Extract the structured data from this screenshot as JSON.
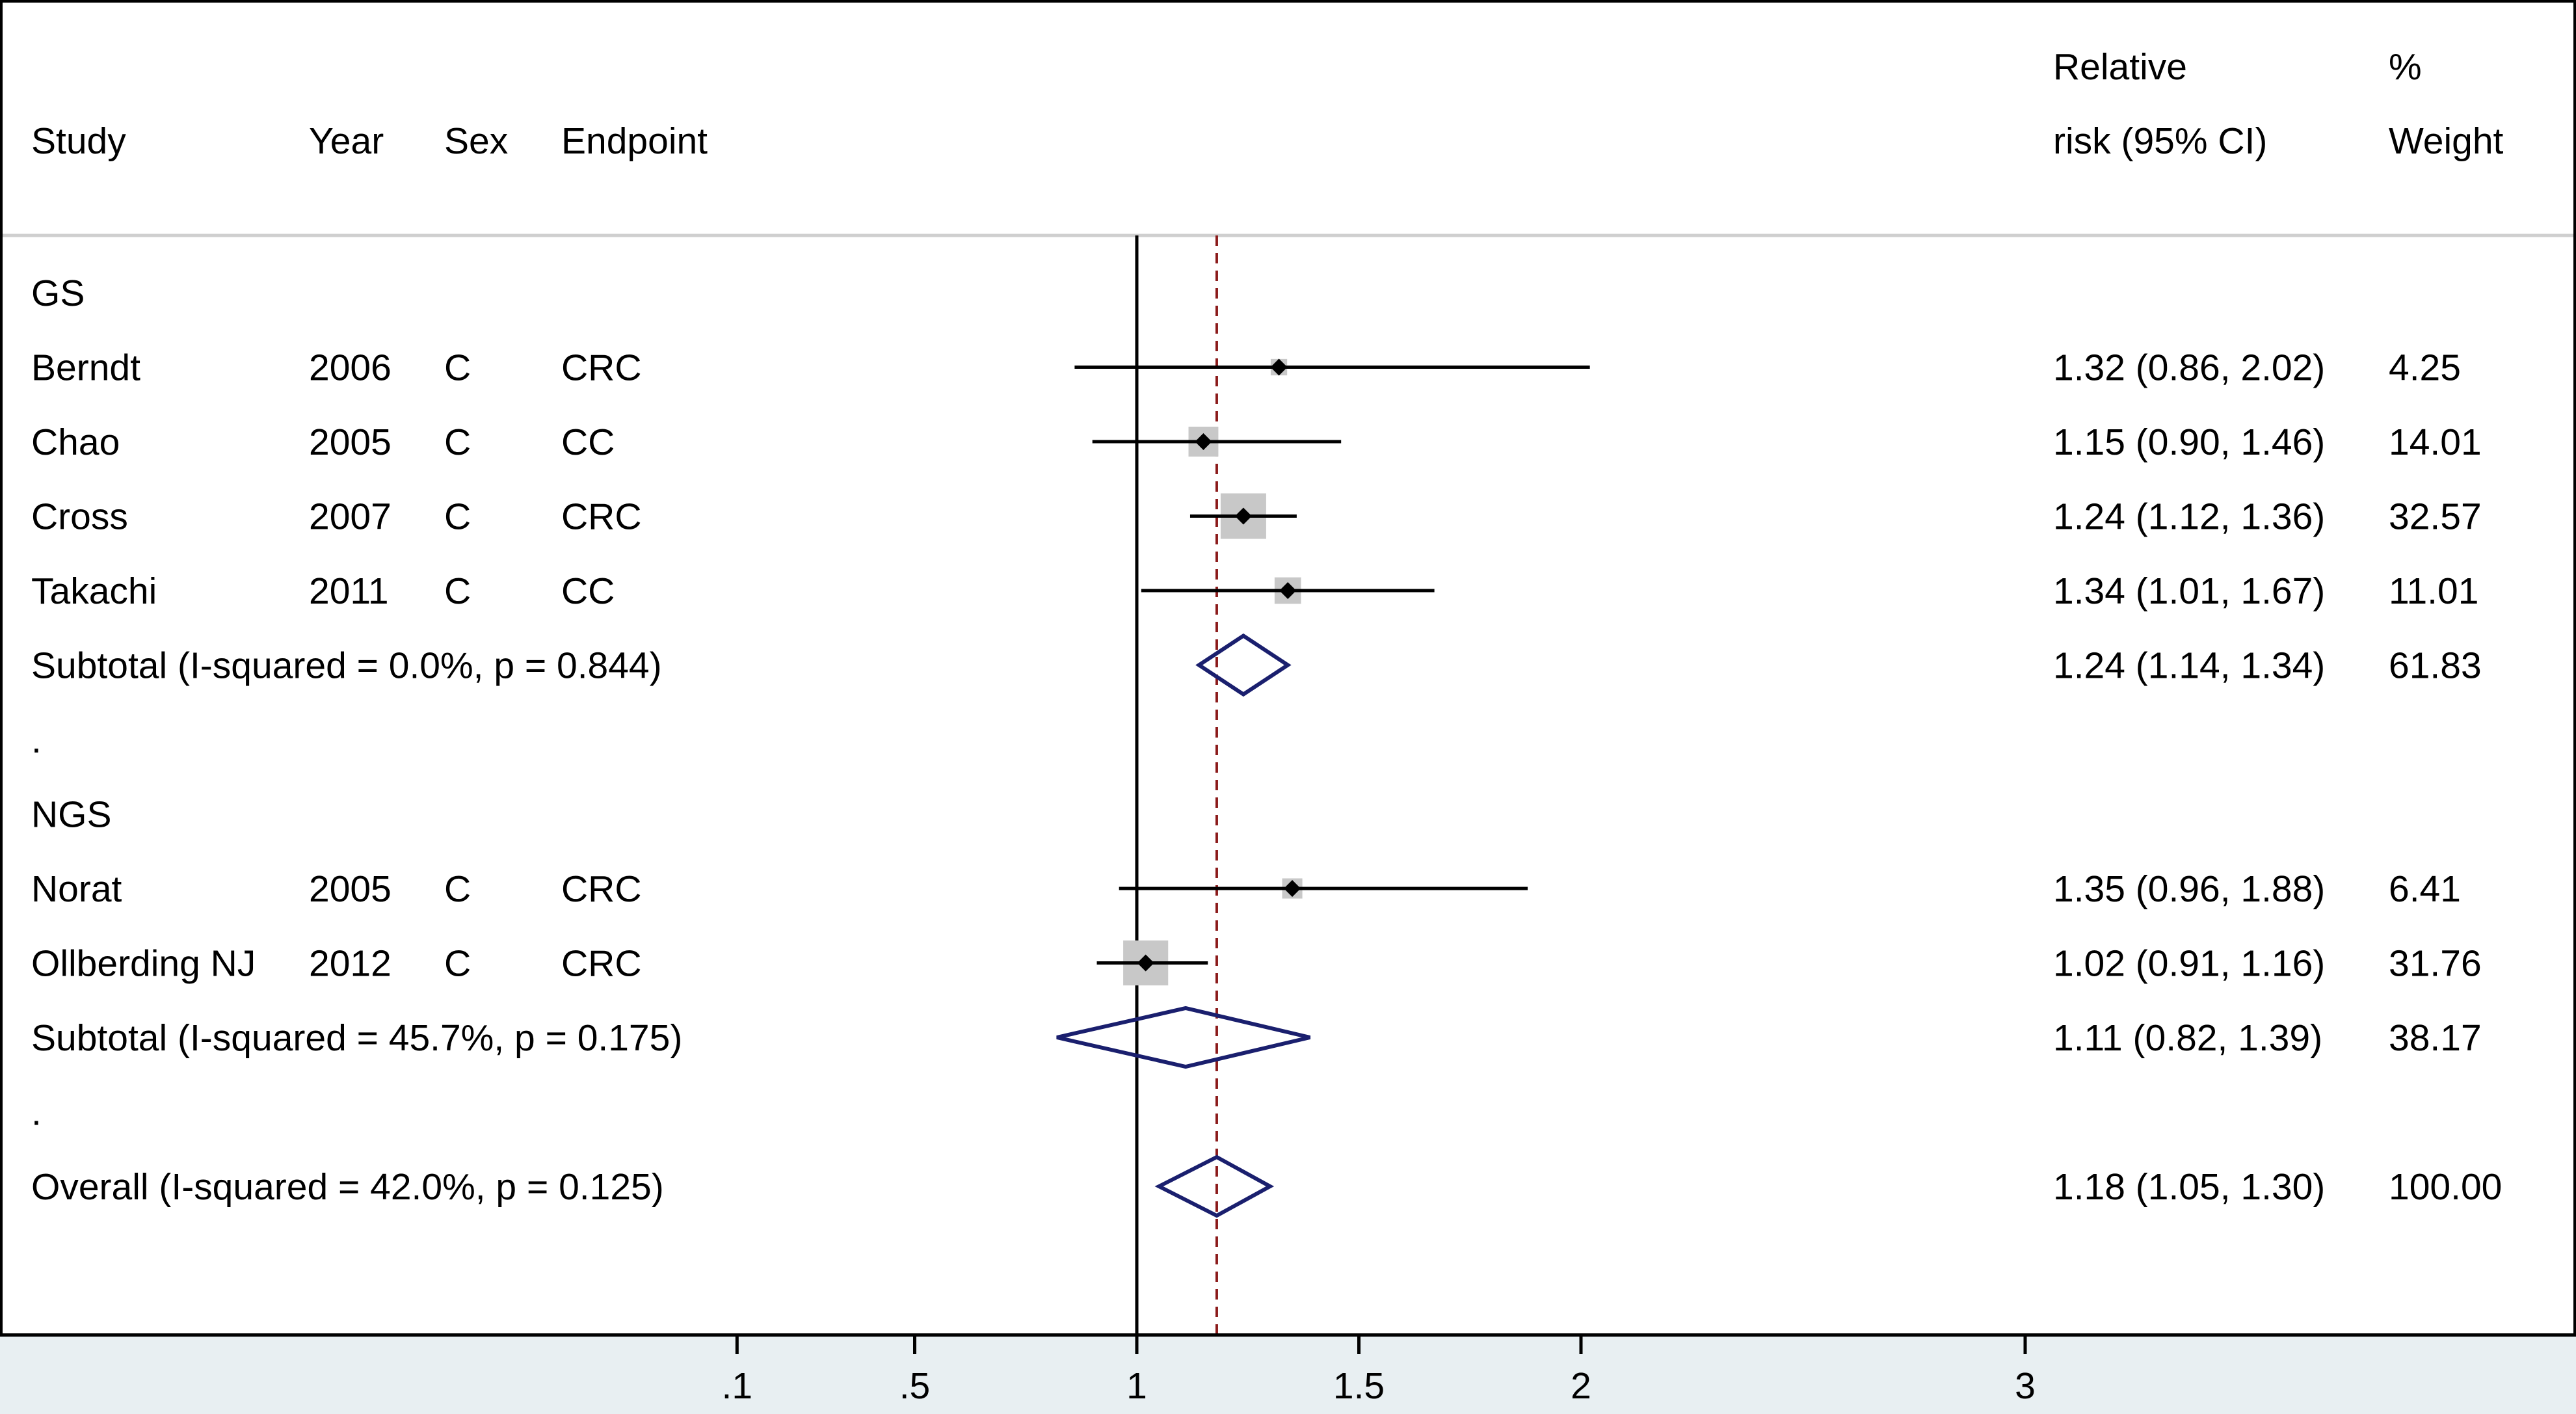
{
  "chart_data": {
    "type": "forest",
    "headers": {
      "study": "Study",
      "year": "Year",
      "sex": "Sex",
      "endpoint": "Endpoint",
      "rr_line1": "Relative",
      "rr_line2": "risk (95% CI)",
      "weight_line1": "%",
      "weight_line2": "Weight"
    },
    "x_ticks": [
      {
        "label": ".1",
        "value": 0.1
      },
      {
        "label": ".5",
        "value": 0.5
      },
      {
        "label": "1",
        "value": 1
      },
      {
        "label": "1.5",
        "value": 1.5
      },
      {
        "label": "2",
        "value": 2
      },
      {
        "label": "3",
        "value": 3
      }
    ],
    "null_line": 1,
    "overall_line": 1.18,
    "colors": {
      "diamond": "#1a1f6e",
      "overall_line": "#8b1a1a",
      "marker": "#000000",
      "box": "#c8c8c8",
      "axis_band": "#e8eff2"
    },
    "rows": [
      {
        "kind": "group",
        "label": "GS"
      },
      {
        "kind": "study",
        "study": "Berndt",
        "year": "2006",
        "sex": "C",
        "endpoint": "CRC",
        "rr": 1.32,
        "lo": 0.86,
        "hi": 2.02,
        "ci_text": "1.32 (0.86, 2.02)",
        "weight_text": "4.25",
        "weight": 4.25
      },
      {
        "kind": "study",
        "study": "Chao",
        "year": "2005",
        "sex": "C",
        "endpoint": "CC",
        "rr": 1.15,
        "lo": 0.9,
        "hi": 1.46,
        "ci_text": "1.15 (0.90, 1.46)",
        "weight_text": "14.01",
        "weight": 14.01
      },
      {
        "kind": "study",
        "study": "Cross",
        "year": "2007",
        "sex": "C",
        "endpoint": "CRC",
        "rr": 1.24,
        "lo": 1.12,
        "hi": 1.36,
        "ci_text": "1.24 (1.12, 1.36)",
        "weight_text": "32.57",
        "weight": 32.57
      },
      {
        "kind": "study",
        "study": "Takachi",
        "year": "2011",
        "sex": "C",
        "endpoint": "CC",
        "rr": 1.34,
        "lo": 1.01,
        "hi": 1.67,
        "ci_text": "1.34 (1.01, 1.67)",
        "weight_text": "11.01",
        "weight": 11.01
      },
      {
        "kind": "subtotal",
        "label": "Subtotal  (I-squared = 0.0%, p = 0.844)",
        "rr": 1.24,
        "lo": 1.14,
        "hi": 1.34,
        "ci_text": "1.24 (1.14, 1.34)",
        "weight_text": "61.83"
      },
      {
        "kind": "spacer",
        "label": "."
      },
      {
        "kind": "group",
        "label": "NGS"
      },
      {
        "kind": "study",
        "study": "Norat",
        "year": "2005",
        "sex": "C",
        "endpoint": "CRC",
        "rr": 1.35,
        "lo": 0.96,
        "hi": 1.88,
        "ci_text": "1.35 (0.96, 1.88)",
        "weight_text": "6.41",
        "weight": 6.41
      },
      {
        "kind": "study",
        "study": "Ollberding NJ",
        "year": "2012",
        "sex": "C",
        "endpoint": "CRC",
        "rr": 1.02,
        "lo": 0.91,
        "hi": 1.16,
        "ci_text": "1.02 (0.91, 1.16)",
        "weight_text": "31.76",
        "weight": 31.76
      },
      {
        "kind": "subtotal",
        "label": "Subtotal  (I-squared = 45.7%, p = 0.175)",
        "rr": 1.11,
        "lo": 0.82,
        "hi": 1.39,
        "ci_text": "1.11 (0.82, 1.39)",
        "weight_text": "38.17"
      },
      {
        "kind": "spacer",
        "label": "."
      },
      {
        "kind": "overall",
        "label": "Overall  (I-squared = 42.0%, p = 0.125)",
        "rr": 1.18,
        "lo": 1.05,
        "hi": 1.3,
        "ci_text": "1.18 (1.05, 1.30)",
        "weight_text": "100.00"
      }
    ]
  }
}
